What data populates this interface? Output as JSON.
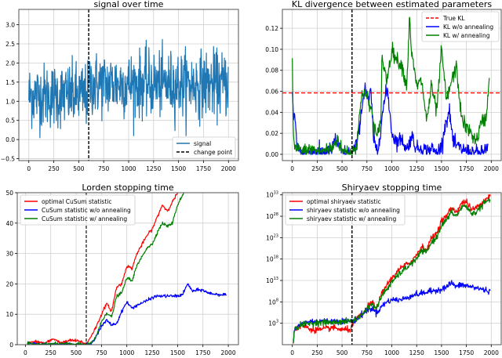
{
  "chart_data": [
    {
      "type": "line",
      "title": "signal over time",
      "xlabel": "",
      "ylabel": "",
      "xlim": [
        -100,
        2100
      ],
      "ylim": [
        -0.55,
        3.4
      ],
      "xticks": [
        0,
        250,
        500,
        750,
        1000,
        1250,
        1500,
        1750,
        2000
      ],
      "yticks": [
        -0.5,
        0.0,
        0.5,
        1.0,
        1.5,
        2.0,
        2.5,
        3.0
      ],
      "ytick_labels": [
        "−0.5",
        "0.0",
        "0.5",
        "1.0",
        "1.5",
        "2.0",
        "2.5",
        "3.0"
      ],
      "grid": true,
      "legend_position": "lower right",
      "legend": [
        "signal",
        "change point"
      ],
      "change_point": 600,
      "series": [
        {
          "name": "signal",
          "color": "#1f77b4",
          "style": "solid",
          "segments": [
            {
              "x_range": [
                0,
                600
              ],
              "mean": 1.15,
              "range": [
                -0.4,
                2.9
              ]
            },
            {
              "x_range": [
                600,
                2000
              ],
              "mean": 1.45,
              "range": [
                0.1,
                3.2
              ]
            }
          ]
        }
      ],
      "annotations": [
        {
          "type": "vline",
          "x": 600,
          "style": "dashed",
          "color": "#000000",
          "label": "change point"
        }
      ]
    },
    {
      "type": "line",
      "title": "KL divergence between estimated parameters",
      "xlabel": "",
      "ylabel": "",
      "xlim": [
        -100,
        2100
      ],
      "ylim": [
        -0.006,
        0.138
      ],
      "xticks": [
        0,
        250,
        500,
        750,
        1000,
        1250,
        1500,
        1750,
        2000
      ],
      "yticks": [
        0.0,
        0.02,
        0.04,
        0.06,
        0.08,
        0.1,
        0.12
      ],
      "ytick_labels": [
        "0.00",
        "0.02",
        "0.04",
        "0.06",
        "0.08",
        "0.10",
        "0.12"
      ],
      "grid": true,
      "legend_position": "upper right",
      "legend": [
        "True KL",
        "KL w/o annealing",
        "KL w/ annealing"
      ],
      "series": [
        {
          "name": "True KL",
          "color": "#ff0000",
          "style": "dashed",
          "value": 0.0585
        },
        {
          "name": "KL w/o annealing",
          "color": "#0000ff",
          "style": "solid",
          "x": [
            0,
            10,
            25,
            50,
            100,
            200,
            300,
            400,
            430,
            500,
            600,
            650,
            700,
            730,
            760,
            790,
            820,
            860,
            900,
            940,
            960,
            1000,
            1050,
            1100,
            1150,
            1200,
            1250,
            1300,
            1350,
            1400,
            1450,
            1500,
            1540,
            1580,
            1620,
            1700,
            1800,
            1900,
            1970
          ],
          "values": [
            0.06,
            0.036,
            0.035,
            0.005,
            0.002,
            0.003,
            0.002,
            0.004,
            0.015,
            0.002,
            0.001,
            0.01,
            0.045,
            0.065,
            0.05,
            0.06,
            0.01,
            0.003,
            0.035,
            0.058,
            0.06,
            0.02,
            0.012,
            0.015,
            0.004,
            0.018,
            0.005,
            0.007,
            0.003,
            0.006,
            0.001,
            0.008,
            0.03,
            0.04,
            0.01,
            0.005,
            0.002,
            0.001,
            0.008
          ]
        },
        {
          "name": "KL w/ annealing",
          "color": "#008000",
          "style": "solid",
          "x": [
            0,
            10,
            25,
            50,
            100,
            200,
            300,
            400,
            450,
            500,
            600,
            650,
            700,
            750,
            800,
            850,
            890,
            900,
            950,
            1000,
            1050,
            1100,
            1150,
            1180,
            1200,
            1250,
            1300,
            1350,
            1400,
            1450,
            1500,
            1550,
            1600,
            1650,
            1700,
            1750,
            1800,
            1850,
            1900,
            1950,
            1980
          ],
          "values": [
            0.087,
            0.02,
            0.003,
            0.005,
            0.003,
            0.004,
            0.003,
            0.006,
            0.015,
            0.003,
            0.002,
            0.01,
            0.06,
            0.055,
            0.04,
            0.015,
            0.03,
            0.092,
            0.07,
            0.1,
            0.09,
            0.085,
            0.065,
            0.132,
            0.095,
            0.065,
            0.07,
            0.032,
            0.065,
            0.04,
            0.1,
            0.05,
            0.07,
            0.083,
            0.035,
            0.025,
            0.02,
            0.012,
            0.03,
            0.035,
            0.076
          ]
        }
      ],
      "annotations": [
        {
          "type": "vline",
          "x": 600,
          "style": "dashed",
          "color": "#000000"
        }
      ]
    },
    {
      "type": "line",
      "title": "Lorden stopping time",
      "xlabel": "",
      "ylabel": "",
      "xlim": [
        -80,
        2100
      ],
      "ylim": [
        0,
        50
      ],
      "xticks": [
        0,
        250,
        500,
        750,
        1000,
        1250,
        1500,
        1750,
        2000
      ],
      "yticks": [
        0,
        10,
        20,
        30,
        40,
        50
      ],
      "grid": true,
      "legend_position": "upper left",
      "legend": [
        "optimal CuSum statistic",
        "CuSum statistic w/o annealing",
        "CuSum statistic w/ annealing"
      ],
      "series": [
        {
          "name": "optimal CuSum statistic",
          "color": "#ff0000",
          "x": [
            20,
            100,
            200,
            280,
            350,
            450,
            550,
            600,
            650,
            700,
            750,
            800,
            850,
            900,
            950,
            1000,
            1050,
            1100,
            1200,
            1250,
            1300,
            1350,
            1400,
            1450,
            1500
          ],
          "values": [
            0.5,
            1,
            0.5,
            2,
            0.5,
            1.5,
            1,
            0,
            3,
            6,
            10,
            13.5,
            11,
            19,
            20,
            26,
            25,
            30,
            36,
            38,
            42,
            46,
            44,
            47,
            50
          ]
        },
        {
          "name": "CuSum statistic w/o annealing",
          "color": "#0000ff",
          "x": [
            20,
            200,
            400,
            600,
            650,
            700,
            750,
            800,
            850,
            900,
            950,
            1000,
            1050,
            1100,
            1200,
            1250,
            1300,
            1400,
            1500,
            1550,
            1600,
            1650,
            1700,
            1750,
            1800,
            1900,
            1980
          ],
          "values": [
            0.3,
            0.1,
            0.2,
            0,
            0.3,
            3,
            6,
            8,
            6.5,
            7,
            11,
            14,
            12,
            13,
            14.5,
            15.5,
            16,
            16,
            16,
            16.5,
            20,
            17.5,
            18,
            18,
            17,
            16.5,
            16.5
          ]
        },
        {
          "name": "CuSum statistic w/ annealing",
          "color": "#008000",
          "x": [
            20,
            200,
            400,
            600,
            650,
            700,
            750,
            800,
            850,
            900,
            950,
            1000,
            1050,
            1100,
            1200,
            1250,
            1300,
            1350,
            1400,
            1450,
            1500,
            1560
          ],
          "values": [
            0.3,
            0.2,
            0.3,
            0,
            0.5,
            3,
            7.5,
            10.5,
            9,
            16,
            17,
            22,
            21,
            26,
            32,
            33,
            37,
            40,
            39,
            40,
            46,
            50
          ]
        }
      ],
      "annotations": [
        {
          "type": "vline",
          "x": 600,
          "style": "dashed",
          "color": "#333333"
        }
      ]
    },
    {
      "type": "line",
      "title": "Shiryaev stopping time",
      "xlabel": "",
      "ylabel": "",
      "yscale": "log",
      "xlim": [
        -100,
        2100
      ],
      "ylim_log10": [
        -2,
        33.5
      ],
      "xticks": [
        0,
        250,
        500,
        750,
        1000,
        1250,
        1500,
        1750,
        2000
      ],
      "yticks_log10": [
        3,
        8,
        13,
        18,
        23,
        28,
        33
      ],
      "grid": true,
      "legend_position": "upper left",
      "legend": [
        "optimal shiryaev statistic",
        "shiryaev statistic w/o annealing",
        "shiryaev statistic w/ annealing"
      ],
      "series": [
        {
          "name": "optimal shiryaev statistic",
          "color": "#ff0000",
          "x": [
            10,
            20,
            100,
            200,
            300,
            400,
            500,
            580,
            600,
            650,
            700,
            750,
            800,
            850,
            900,
            950,
            1000,
            1050,
            1100,
            1200,
            1250,
            1300,
            1350,
            1400,
            1450,
            1500,
            1550,
            1600,
            1650,
            1700,
            1750,
            1800,
            1850,
            1900,
            1990
          ],
          "values_log10": [
            -2,
            1.5,
            2.5,
            1.5,
            1.5,
            2,
            1.5,
            1.5,
            2.5,
            4,
            5,
            6.5,
            8,
            6.5,
            10,
            12,
            13.5,
            15,
            16,
            17.5,
            19,
            21,
            20,
            23,
            24,
            27,
            28,
            30,
            29,
            31,
            31.5,
            29.5,
            30,
            31,
            33
          ]
        },
        {
          "name": "shiryaev statistic w/o annealing",
          "color": "#0000ff",
          "x": [
            10,
            20,
            100,
            200,
            300,
            400,
            500,
            600,
            650,
            700,
            750,
            800,
            850,
            900,
            950,
            1000,
            1100,
            1200,
            1300,
            1400,
            1500,
            1550,
            1600,
            1650,
            1700,
            1800,
            1900,
            1990
          ],
          "values_log10": [
            -2,
            1.5,
            3,
            3.5,
            3.5,
            3.5,
            3.5,
            3.5,
            4,
            5,
            6,
            6.5,
            5.5,
            7,
            8,
            8.5,
            8.5,
            9.5,
            10,
            10.5,
            11,
            11.5,
            12.5,
            11.5,
            12,
            11.5,
            11,
            10.5
          ]
        },
        {
          "name": "shiryaev statistic w/ annealing",
          "color": "#008000",
          "x": [
            10,
            20,
            100,
            200,
            300,
            400,
            500,
            600,
            650,
            700,
            750,
            800,
            850,
            900,
            950,
            1000,
            1050,
            1100,
            1200,
            1250,
            1300,
            1350,
            1400,
            1450,
            1500,
            1550,
            1600,
            1650,
            1700,
            1750,
            1800,
            1850,
            1900,
            1990
          ],
          "values_log10": [
            -2,
            1.5,
            2.8,
            3,
            3.2,
            3.2,
            3.3,
            3.5,
            4,
            5,
            6.5,
            7.5,
            6.5,
            9.5,
            11,
            12.5,
            14,
            15,
            17,
            18,
            20,
            19.5,
            22,
            23,
            26,
            27,
            29,
            28,
            30,
            30.5,
            28.5,
            29,
            30.5,
            32
          ]
        }
      ],
      "annotations": [
        {
          "type": "vline",
          "x": 600,
          "style": "dashed",
          "color": "#000000"
        }
      ]
    }
  ]
}
